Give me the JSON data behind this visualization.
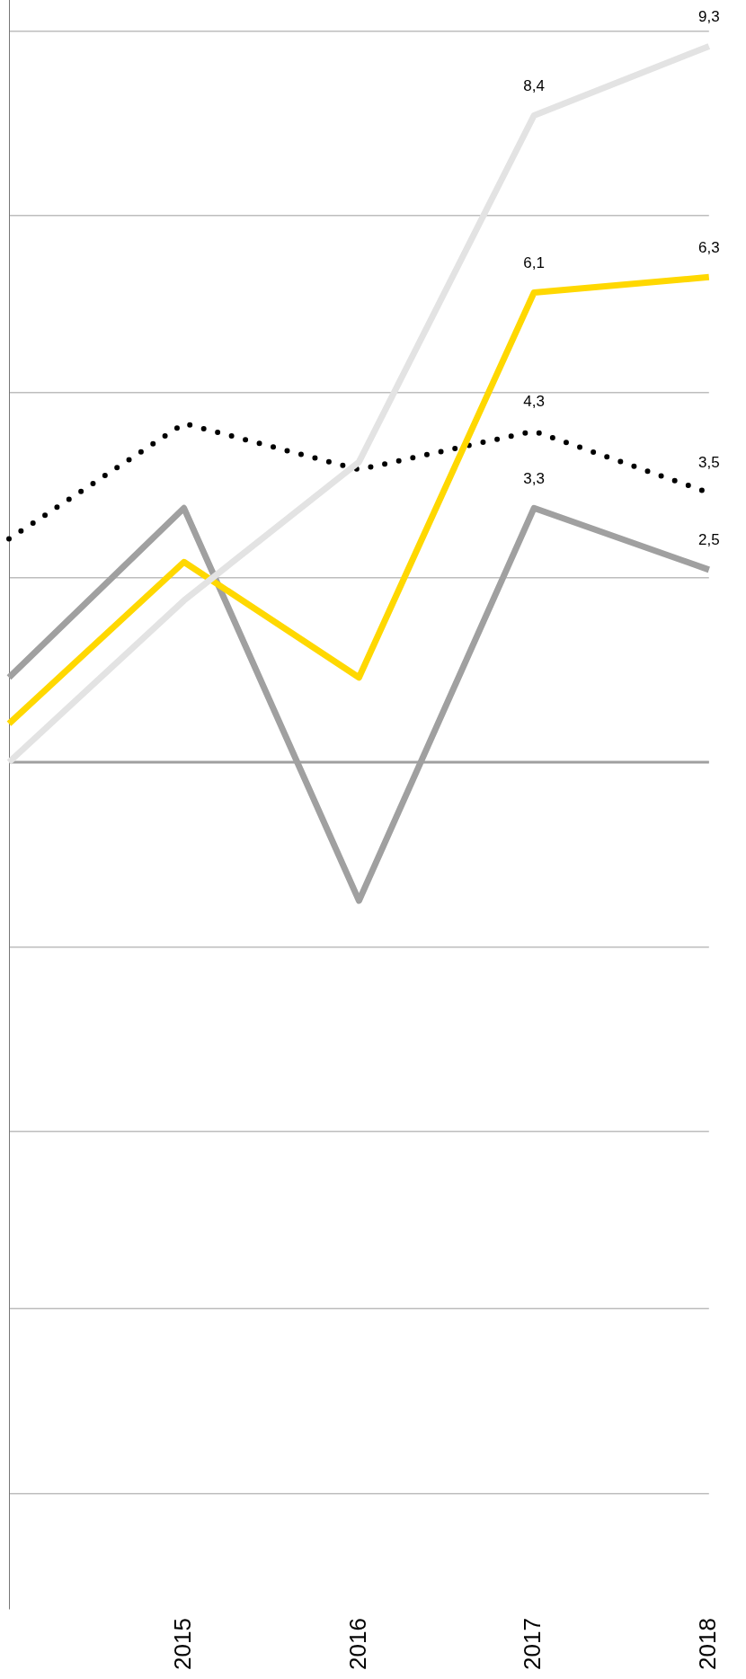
{
  "chart_data": {
    "type": "line",
    "categories": [
      null,
      "2015",
      "2016",
      "2017",
      "2018"
    ],
    "series": [
      {
        "color": "#e3e3e3",
        "values": [
          0,
          2.1,
          3.9,
          8.4,
          9.3
        ],
        "value_labels": [
          null,
          null,
          null,
          "8,4",
          "9,3"
        ]
      },
      {
        "color": "#ffd800",
        "values": [
          0.5,
          2.6,
          1.1,
          6.1,
          6.3
        ],
        "value_labels": [
          null,
          null,
          null,
          "6,1",
          "6,3"
        ]
      },
      {
        "color": "#a0a0a0",
        "values": [
          1.1,
          3.3,
          -1.8,
          3.3,
          2.5
        ],
        "value_labels": [
          null,
          null,
          null,
          "3,3",
          "2,5"
        ]
      },
      {
        "color": "#000000",
        "line_style": "dotted",
        "values": [
          2.9,
          4.4,
          3.8,
          4.3,
          3.5
        ],
        "value_labels": [
          null,
          null,
          null,
          "4,3",
          "3,5"
        ]
      }
    ],
    "ylim": [
      -11,
      9.9
    ],
    "yticks": [
      {
        "value": -9.5,
        "label": null
      },
      {
        "value": -7.1,
        "label": null
      },
      {
        "value": -4.8,
        "label": null
      },
      {
        "value": -2.4,
        "label": null
      },
      {
        "value": 0,
        "label": null
      },
      {
        "value": 2.4,
        "label": null
      },
      {
        "value": 4.8,
        "label": null
      },
      {
        "value": 7.1,
        "label": null
      },
      {
        "value": 9.5,
        "label": null
      }
    ],
    "ref_lines": [
      {
        "axis": "y",
        "value": 0,
        "color": "#a0a0a0"
      }
    ],
    "grid": "y",
    "legend": false,
    "marker": "none",
    "line_style": "solid",
    "tick_labels": "x"
  }
}
